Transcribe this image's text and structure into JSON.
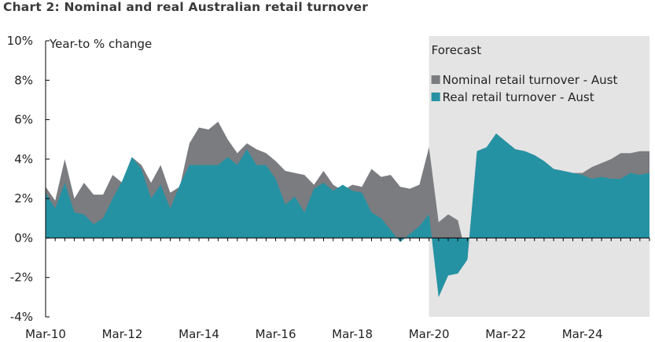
{
  "title": "Chart 2:  Nominal and real Australian retail turnover",
  "chart_data": {
    "type": "area",
    "title": "Chart 2:  Nominal and real Australian retail turnover",
    "ylabel": "Year-to % change",
    "ylim": [
      -4,
      10
    ],
    "yticks": [
      "10%",
      "8%",
      "6%",
      "4%",
      "2%",
      "0%",
      "-2%",
      "-4%"
    ],
    "x_start": "2010-03",
    "x_end": "2025-12",
    "xticks": [
      "Mar-10",
      "Mar-12",
      "Mar-14",
      "Mar-16",
      "Mar-18",
      "Mar-20",
      "Mar-22",
      "Mar-24"
    ],
    "forecast": {
      "label": "Forecast",
      "start": "2020-03"
    },
    "legend_position": "top-right",
    "grid": false,
    "series": [
      {
        "name": "Nominal retail turnover - Aust",
        "color": "#7a7c80",
        "x": [
          "2010-03",
          "2010-06",
          "2010-09",
          "2010-12",
          "2011-03",
          "2011-06",
          "2011-09",
          "2011-12",
          "2012-03",
          "2012-06",
          "2012-09",
          "2012-12",
          "2013-03",
          "2013-06",
          "2013-09",
          "2013-12",
          "2014-03",
          "2014-06",
          "2014-09",
          "2014-12",
          "2015-03",
          "2015-06",
          "2015-09",
          "2015-12",
          "2016-03",
          "2016-06",
          "2016-09",
          "2016-12",
          "2017-03",
          "2017-06",
          "2017-09",
          "2017-12",
          "2018-03",
          "2018-06",
          "2018-09",
          "2018-12",
          "2019-03",
          "2019-06",
          "2019-09",
          "2019-12",
          "2020-03",
          "2020-06",
          "2020-09",
          "2020-12",
          "2021-03",
          "2021-06",
          "2021-09",
          "2021-12",
          "2022-03",
          "2022-06",
          "2022-09",
          "2022-12",
          "2023-03",
          "2023-06",
          "2023-09",
          "2023-12",
          "2024-03",
          "2024-06",
          "2024-09",
          "2024-12",
          "2025-03",
          "2025-06",
          "2025-09",
          "2025-12"
        ],
        "values": [
          2.6,
          1.9,
          4.0,
          2.0,
          2.8,
          2.2,
          2.2,
          3.2,
          2.8,
          4.1,
          3.7,
          2.8,
          3.7,
          2.3,
          2.6,
          4.8,
          5.6,
          5.5,
          5.9,
          5.0,
          4.3,
          4.8,
          4.5,
          4.3,
          3.9,
          3.4,
          3.3,
          3.2,
          2.7,
          3.4,
          2.7,
          2.4,
          2.7,
          2.6,
          3.5,
          3.1,
          3.2,
          2.6,
          2.5,
          2.7,
          4.6,
          0.8,
          1.2,
          0.9,
          -1.1,
          4.4,
          4.6,
          5.3,
          4.9,
          4.5,
          4.4,
          4.2,
          3.9,
          3.5,
          3.4,
          3.3,
          3.3,
          3.6,
          3.8,
          4.0,
          4.3,
          4.3,
          4.4,
          4.4
        ]
      },
      {
        "name": "Real retail turnover - Aust",
        "color": "#2592a3",
        "x": [
          "2010-03",
          "2010-06",
          "2010-09",
          "2010-12",
          "2011-03",
          "2011-06",
          "2011-09",
          "2011-12",
          "2012-03",
          "2012-06",
          "2012-09",
          "2012-12",
          "2013-03",
          "2013-06",
          "2013-09",
          "2013-12",
          "2014-03",
          "2014-06",
          "2014-09",
          "2014-12",
          "2015-03",
          "2015-06",
          "2015-09",
          "2015-12",
          "2016-03",
          "2016-06",
          "2016-09",
          "2016-12",
          "2017-03",
          "2017-06",
          "2017-09",
          "2017-12",
          "2018-03",
          "2018-06",
          "2018-09",
          "2018-12",
          "2019-03",
          "2019-06",
          "2019-09",
          "2019-12",
          "2020-03",
          "2020-06",
          "2020-09",
          "2020-12",
          "2021-03",
          "2021-06",
          "2021-09",
          "2021-12",
          "2022-03",
          "2022-06",
          "2022-09",
          "2022-12",
          "2023-03",
          "2023-06",
          "2023-09",
          "2023-12",
          "2024-03",
          "2024-06",
          "2024-09",
          "2024-12",
          "2025-03",
          "2025-06",
          "2025-09",
          "2025-12"
        ],
        "values": [
          2.3,
          1.5,
          2.8,
          1.3,
          1.2,
          0.7,
          1.0,
          2.0,
          2.9,
          4.1,
          3.5,
          2.0,
          2.7,
          1.5,
          2.7,
          3.7,
          3.7,
          3.7,
          3.7,
          4.1,
          3.7,
          4.5,
          3.7,
          3.7,
          3.0,
          1.7,
          2.1,
          1.3,
          2.5,
          2.8,
          2.4,
          2.7,
          2.4,
          2.3,
          1.3,
          1.0,
          0.4,
          -0.2,
          0.2,
          0.6,
          1.2,
          -3.0,
          -1.9,
          -1.8,
          -1.1,
          4.4,
          4.6,
          5.3,
          4.9,
          4.5,
          4.4,
          4.2,
          3.9,
          3.5,
          3.4,
          3.3,
          3.2,
          3.0,
          3.1,
          3.0,
          3.0,
          3.3,
          3.2,
          3.3
        ]
      }
    ]
  }
}
